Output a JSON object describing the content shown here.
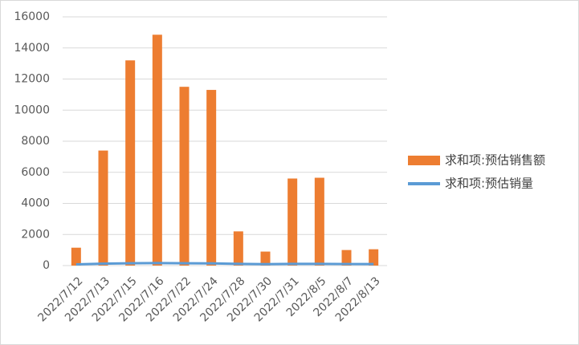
{
  "chart_data": {
    "type": "combo",
    "categories": [
      "2022/7/12",
      "2022/7/13",
      "2022/7/15",
      "2022/7/16",
      "2022/7/22",
      "2022/7/24",
      "2022/7/28",
      "2022/7/30",
      "2022/7/31",
      "2022/8/5",
      "2022/8/7",
      "2022/8/13"
    ],
    "series": [
      {
        "name": "求和项:预估销售额",
        "kind": "bar",
        "color": "#ed7d31",
        "values": [
          1150,
          7400,
          13200,
          14850,
          11500,
          11300,
          2200,
          900,
          5600,
          5650,
          1000,
          1050
        ]
      },
      {
        "name": "求和项:预估销量",
        "kind": "line",
        "color": "#5b9bd5",
        "values": [
          80,
          120,
          150,
          160,
          150,
          140,
          110,
          90,
          110,
          110,
          100,
          100
        ]
      }
    ],
    "ylim": [
      0,
      16000
    ],
    "yticks": [
      0,
      2000,
      4000,
      6000,
      8000,
      10000,
      12000,
      14000,
      16000
    ],
    "grid": true,
    "legend": "right"
  }
}
